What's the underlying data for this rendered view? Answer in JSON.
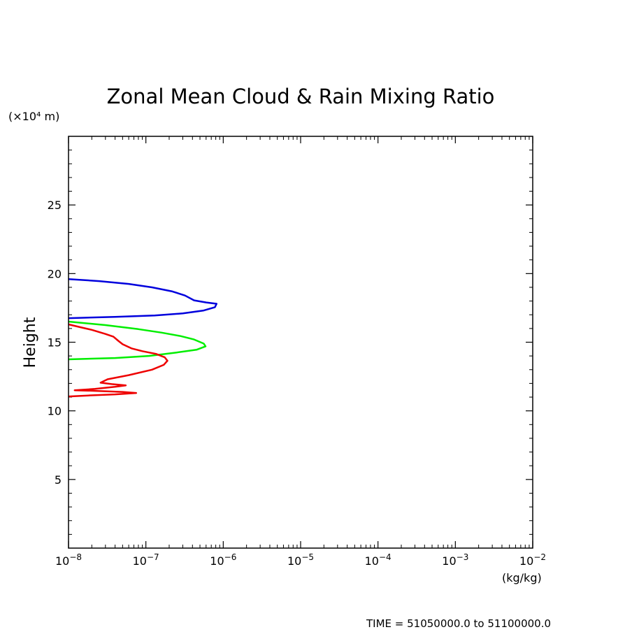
{
  "chart_data": {
    "type": "line",
    "title": "Zonal Mean Cloud & Rain Mixing Ratio",
    "ylabel": "Height",
    "yunit_label": "(×10⁴ m)",
    "xunit_label": "(kg/kg)",
    "xscale": "log",
    "xlim": [
      1e-08,
      0.01
    ],
    "ylim": [
      0,
      30
    ],
    "x_ticks": [
      {
        "base": "10",
        "exp": "−8"
      },
      {
        "base": "10",
        "exp": "−7"
      },
      {
        "base": "10",
        "exp": "−6"
      },
      {
        "base": "10",
        "exp": "−5"
      },
      {
        "base": "10",
        "exp": "−4"
      },
      {
        "base": "10",
        "exp": "−3"
      },
      {
        "base": "10",
        "exp": "−2"
      }
    ],
    "y_ticks": [
      "5",
      "10",
      "15",
      "20",
      "25"
    ],
    "footer": "TIME = 51050000.0 to 51100000.0",
    "series": [
      {
        "name": "blue",
        "color": "#0000dd",
        "points": [
          [
            1e-08,
            19.6
          ],
          [
            2.5e-08,
            19.45
          ],
          [
            6e-08,
            19.25
          ],
          [
            1.2e-07,
            19.0
          ],
          [
            2.2e-07,
            18.7
          ],
          [
            3.2e-07,
            18.4
          ],
          [
            4.2e-07,
            18.05
          ],
          [
            6e-07,
            17.9
          ],
          [
            8.2e-07,
            17.8
          ],
          [
            7.8e-07,
            17.55
          ],
          [
            5.5e-07,
            17.3
          ],
          [
            3e-07,
            17.1
          ],
          [
            1.3e-07,
            16.95
          ],
          [
            4e-08,
            16.85
          ],
          [
            1e-08,
            16.75
          ]
        ]
      },
      {
        "name": "green",
        "color": "#00ee00",
        "points": [
          [
            1e-08,
            16.5
          ],
          [
            3e-08,
            16.25
          ],
          [
            8e-08,
            15.95
          ],
          [
            1.6e-07,
            15.7
          ],
          [
            2.8e-07,
            15.45
          ],
          [
            4.2e-07,
            15.2
          ],
          [
            5.6e-07,
            14.9
          ],
          [
            5.9e-07,
            14.7
          ],
          [
            4.5e-07,
            14.45
          ],
          [
            2.5e-07,
            14.25
          ],
          [
            1.1e-07,
            14.0
          ],
          [
            4e-08,
            13.85
          ],
          [
            1e-08,
            13.75
          ]
        ]
      },
      {
        "name": "red",
        "color": "#ee0000",
        "points": [
          [
            1e-08,
            16.3
          ],
          [
            1.4e-08,
            16.1
          ],
          [
            2e-08,
            15.9
          ],
          [
            3e-08,
            15.6
          ],
          [
            3.8e-08,
            15.4
          ],
          [
            4.4e-08,
            15.1
          ],
          [
            5e-08,
            14.85
          ],
          [
            6.5e-08,
            14.55
          ],
          [
            9e-08,
            14.35
          ],
          [
            1.35e-07,
            14.15
          ],
          [
            1.75e-07,
            13.9
          ],
          [
            1.9e-07,
            13.65
          ],
          [
            1.7e-07,
            13.35
          ],
          [
            1.2e-07,
            13.0
          ],
          [
            6e-08,
            12.6
          ],
          [
            3.2e-08,
            12.3
          ],
          [
            2.6e-08,
            12.05
          ],
          [
            3.6e-08,
            11.95
          ],
          [
            5.5e-08,
            11.85
          ],
          [
            4e-08,
            11.75
          ],
          [
            2.2e-08,
            11.6
          ],
          [
            1.2e-08,
            11.5
          ],
          [
            2.4e-08,
            11.45
          ],
          [
            5e-08,
            11.38
          ],
          [
            7.5e-08,
            11.3
          ],
          [
            4e-08,
            11.2
          ],
          [
            1.8e-08,
            11.12
          ],
          [
            1e-08,
            11.05
          ]
        ]
      }
    ]
  }
}
